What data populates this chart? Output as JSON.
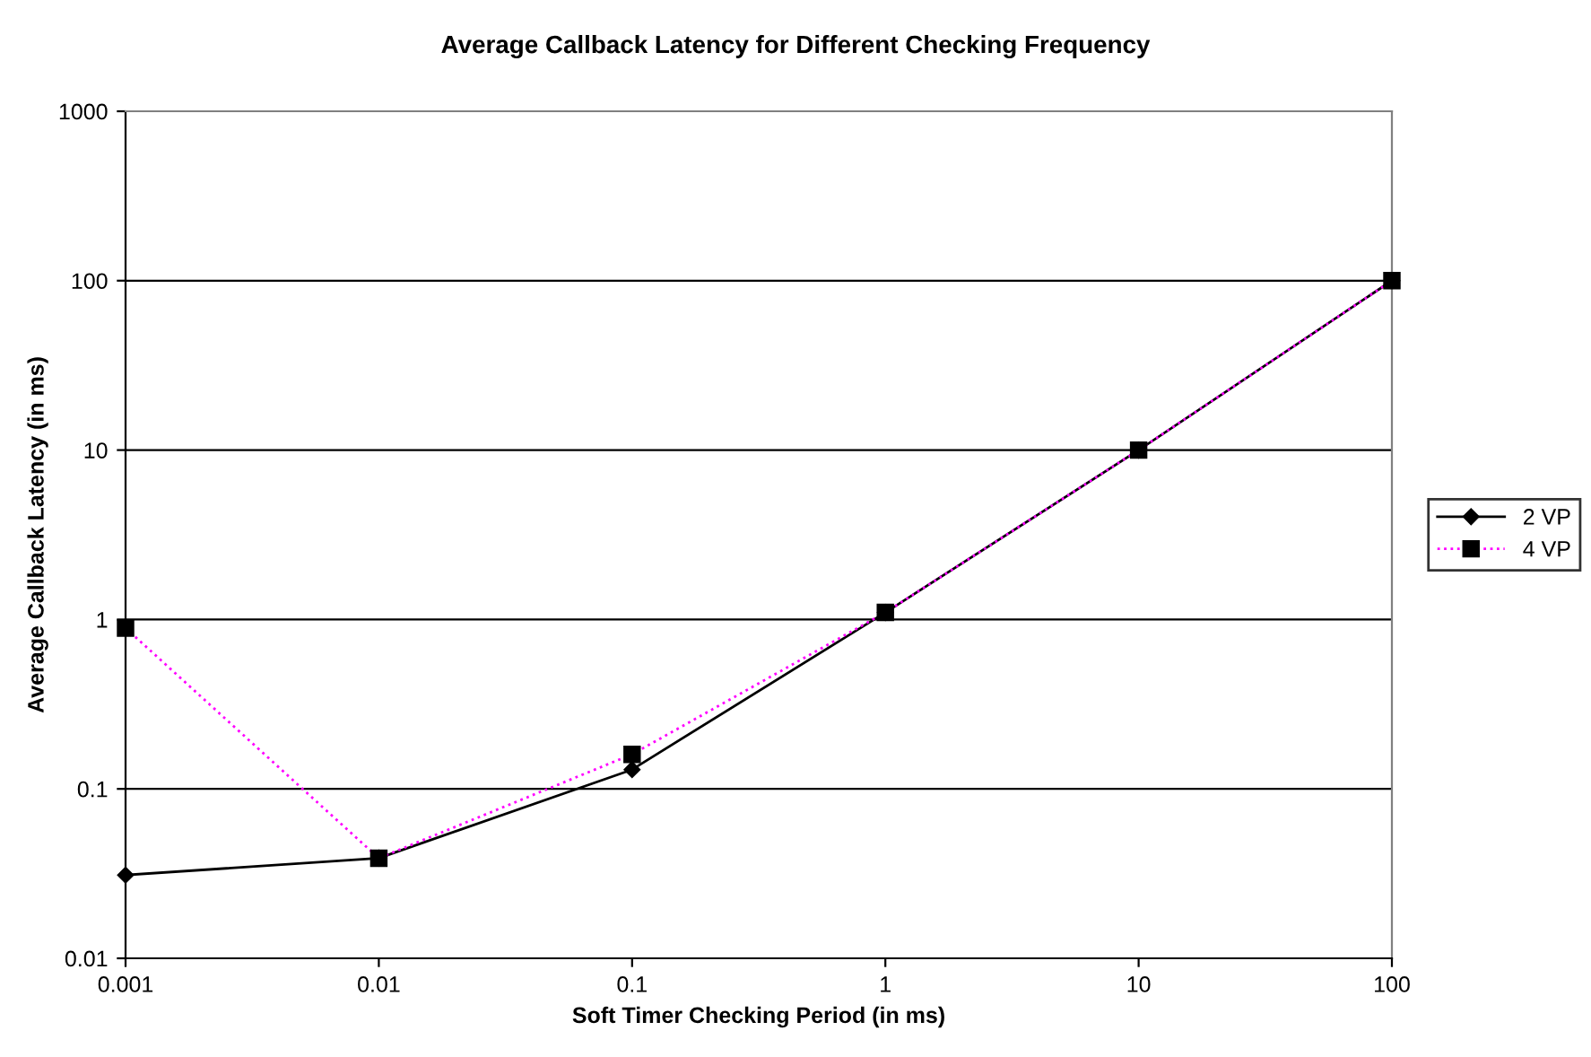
{
  "chart_data": {
    "type": "line",
    "title": "Average Callback Latency for Different Checking Frequency",
    "xlabel": "Soft Timer Checking Period (in ms)",
    "ylabel": "Average Callback Latency (in ms)",
    "categories": [
      "0.001",
      "0.01",
      "0.1",
      "1",
      "10",
      "100"
    ],
    "series": [
      {
        "name": "2 VP",
        "color": "#000000",
        "values": [
          0.031,
          0.039,
          0.13,
          1.1,
          10,
          100
        ],
        "marker": "diamond",
        "line_style": "solid"
      },
      {
        "name": "4 VP",
        "color": "#ff00ff",
        "values": [
          0.89,
          0.039,
          0.16,
          1.1,
          10,
          100
        ],
        "marker": "square",
        "line_style": "dotted"
      }
    ],
    "log": "y",
    "ylim": [
      0.01,
      1000
    ],
    "yticks": [
      0.01,
      0.1,
      1,
      10,
      100,
      1000
    ],
    "grid": "y",
    "legend": "right"
  }
}
